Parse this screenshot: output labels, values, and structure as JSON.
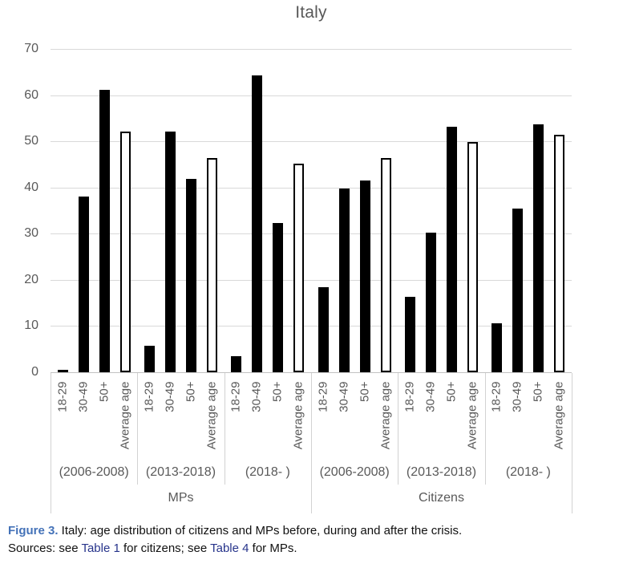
{
  "chart_data": {
    "type": "bar",
    "title": "Italy",
    "xlabel": "",
    "ylabel": "",
    "ylim": [
      0,
      70
    ],
    "yticks": [
      0,
      10,
      20,
      30,
      40,
      50,
      60,
      70
    ],
    "grid": true,
    "legend": "none",
    "bar_labels": [
      "18-29",
      "30-49",
      "50+",
      "Average age"
    ],
    "bar_note": "age-bracket bars solid black; Average age bar white with black outline",
    "sections": [
      {
        "label": "MPs",
        "groups": [
          {
            "period": "(2006-2008)",
            "values": [
              0.6,
              38.0,
              61.2,
              52.2
            ]
          },
          {
            "period": "(2013-2018)",
            "values": [
              5.8,
              52.2,
              41.8,
              46.3
            ]
          },
          {
            "period": "(2018- )",
            "values": [
              3.4,
              64.2,
              32.4,
              45.1
            ]
          }
        ]
      },
      {
        "label": "Citizens",
        "groups": [
          {
            "period": "(2006-2008)",
            "values": [
              18.4,
              39.8,
              41.5,
              46.4
            ]
          },
          {
            "period": "(2013-2018)",
            "values": [
              16.4,
              30.2,
              53.2,
              49.8
            ]
          },
          {
            "period": "(2018- )",
            "values": [
              10.6,
              35.5,
              53.7,
              51.4
            ]
          }
        ]
      }
    ]
  },
  "caption": {
    "figure_label": "Figure 3.",
    "title_text": " Italy: age distribution of citizens and MPs before, during and after the crisis.",
    "sources_prefix": "Sources: see ",
    "table1_link": "Table 1",
    "sources_mid": " for citizens; see ",
    "table4_link": "Table 4",
    "sources_suffix": " for MPs."
  },
  "colors": {
    "bar_fill": "#000000",
    "average_bar_fill": "#ffffff",
    "gridline": "#d9d9d9",
    "axis_text": "#595959",
    "figure_label_blue": "#4472b8",
    "table_link_navy": "#27348b"
  }
}
